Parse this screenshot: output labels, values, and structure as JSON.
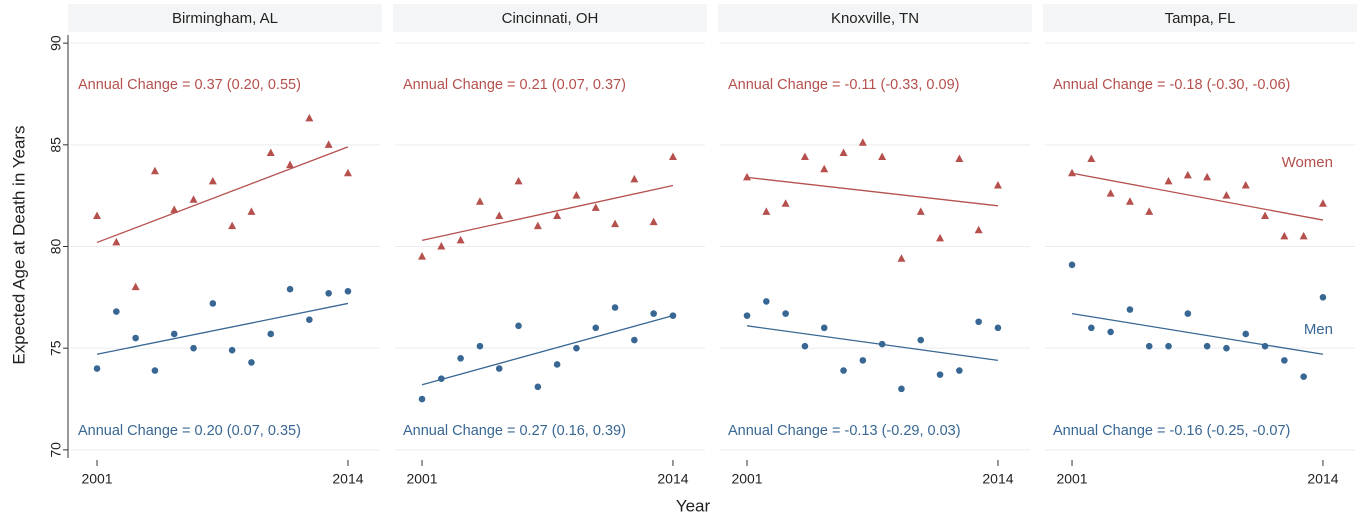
{
  "xlabel": "Year",
  "ylabel": "Expected Age at Death in Years",
  "chart_data": [
    {
      "type": "scatter",
      "title": "Birmingham,  AL",
      "x": [
        2001,
        2002,
        2003,
        2004,
        2005,
        2006,
        2007,
        2008,
        2009,
        2010,
        2011,
        2012,
        2013,
        2014
      ],
      "xlim": [
        1999.6,
        2015.66
      ],
      "xticks": [
        2001,
        2014
      ],
      "ylim": [
        69.6,
        90.4
      ],
      "yticks": [
        70,
        75,
        80,
        85,
        90
      ],
      "grid": true,
      "show_ytick_labels": true,
      "series": [
        {
          "color": "#b5504d",
          "marker": "triangle",
          "values": [
            81.5,
            80.2,
            78.0,
            83.7,
            81.8,
            82.3,
            83.2,
            81.0,
            81.7,
            84.6,
            84.0,
            86.3,
            85.0,
            83.6
          ],
          "trend": [
            80.2,
            84.9
          ],
          "annotation": "Annual Change = 0.37 (0.20, 0.55)"
        },
        {
          "color": "#386794",
          "marker": "circle",
          "values": [
            74.0,
            76.8,
            75.5,
            73.9,
            75.7,
            75.0,
            77.2,
            74.9,
            74.3,
            75.7,
            77.9,
            76.4,
            77.7,
            77.8
          ],
          "trend": [
            74.7,
            77.2
          ],
          "annotation": "Annual Change = 0.20 (0.07, 0.35)"
        }
      ]
    },
    {
      "type": "scatter",
      "title": "Cincinnati,  OH",
      "x": [
        2001,
        2002,
        2003,
        2004,
        2005,
        2006,
        2007,
        2008,
        2009,
        2010,
        2011,
        2012,
        2013,
        2014
      ],
      "xlim": [
        1999.6,
        2015.66
      ],
      "xticks": [
        2001,
        2014
      ],
      "ylim": [
        69.6,
        90.4
      ],
      "yticks": [
        70,
        75,
        80,
        85,
        90
      ],
      "grid": true,
      "show_ytick_labels": false,
      "series": [
        {
          "color": "#b5504d",
          "marker": "triangle",
          "values": [
            79.5,
            80.0,
            80.3,
            82.2,
            81.5,
            83.2,
            81.0,
            81.5,
            82.5,
            81.9,
            81.1,
            83.3,
            81.2,
            84.4
          ],
          "trend": [
            80.3,
            83.0
          ],
          "annotation": "Annual Change = 0.21 (0.07, 0.37)"
        },
        {
          "color": "#386794",
          "marker": "circle",
          "values": [
            72.5,
            73.5,
            74.5,
            75.1,
            74.0,
            76.1,
            73.1,
            74.2,
            75.0,
            76.0,
            77.0,
            75.4,
            76.7,
            76.6
          ],
          "trend": [
            73.2,
            76.6
          ],
          "annotation": "Annual Change = 0.27 (0.16, 0.39)"
        }
      ]
    },
    {
      "type": "scatter",
      "title": "Knoxville,  TN",
      "x": [
        2001,
        2002,
        2003,
        2004,
        2005,
        2006,
        2007,
        2008,
        2009,
        2010,
        2011,
        2012,
        2013,
        2014
      ],
      "xlim": [
        1999.6,
        2015.66
      ],
      "xticks": [
        2001,
        2014
      ],
      "ylim": [
        69.6,
        90.4
      ],
      "yticks": [
        70,
        75,
        80,
        85,
        90
      ],
      "grid": true,
      "show_ytick_labels": false,
      "series": [
        {
          "color": "#b5504d",
          "marker": "triangle",
          "values": [
            83.4,
            81.7,
            82.1,
            84.4,
            83.8,
            84.6,
            85.1,
            84.4,
            79.4,
            81.7,
            80.4,
            84.3,
            80.8,
            83.0
          ],
          "trend": [
            83.4,
            82.0
          ],
          "annotation": "Annual Change = -0.11 (-0.33, 0.09)"
        },
        {
          "color": "#386794",
          "marker": "circle",
          "values": [
            76.6,
            77.3,
            76.7,
            75.1,
            76.0,
            73.9,
            74.4,
            75.2,
            73.0,
            75.4,
            73.7,
            73.9,
            76.3,
            76.0
          ],
          "trend": [
            76.1,
            74.4
          ],
          "annotation": "Annual Change = -0.13 (-0.29, 0.03)"
        }
      ]
    },
    {
      "type": "scatter",
      "title": "Tampa,  FL",
      "x": [
        2001,
        2002,
        2003,
        2004,
        2005,
        2006,
        2007,
        2008,
        2009,
        2010,
        2011,
        2012,
        2013,
        2014
      ],
      "xlim": [
        1999.6,
        2015.66
      ],
      "xticks": [
        2001,
        2014
      ],
      "ylim": [
        69.6,
        90.4
      ],
      "yticks": [
        70,
        75,
        80,
        85,
        90
      ],
      "grid": true,
      "show_ytick_labels": false,
      "series": [
        {
          "name": "Women",
          "color": "#b5504d",
          "marker": "triangle",
          "values": [
            83.6,
            84.3,
            82.6,
            82.2,
            81.7,
            83.2,
            83.5,
            83.4,
            82.5,
            83.0,
            81.5,
            80.5,
            80.5,
            82.1
          ],
          "trend": [
            83.6,
            81.3
          ],
          "annotation": "Annual Change = -0.18 (-0.30, -0.06)"
        },
        {
          "name": "Men",
          "color": "#386794",
          "marker": "circle",
          "values": [
            79.1,
            76.0,
            75.8,
            76.9,
            75.1,
            75.1,
            76.7,
            75.1,
            75.0,
            75.7,
            75.1,
            74.4,
            73.6,
            77.5
          ],
          "trend": [
            76.7,
            74.7
          ],
          "annotation": "Annual Change = -0.16 (-0.25, -0.07)"
        }
      ]
    }
  ]
}
